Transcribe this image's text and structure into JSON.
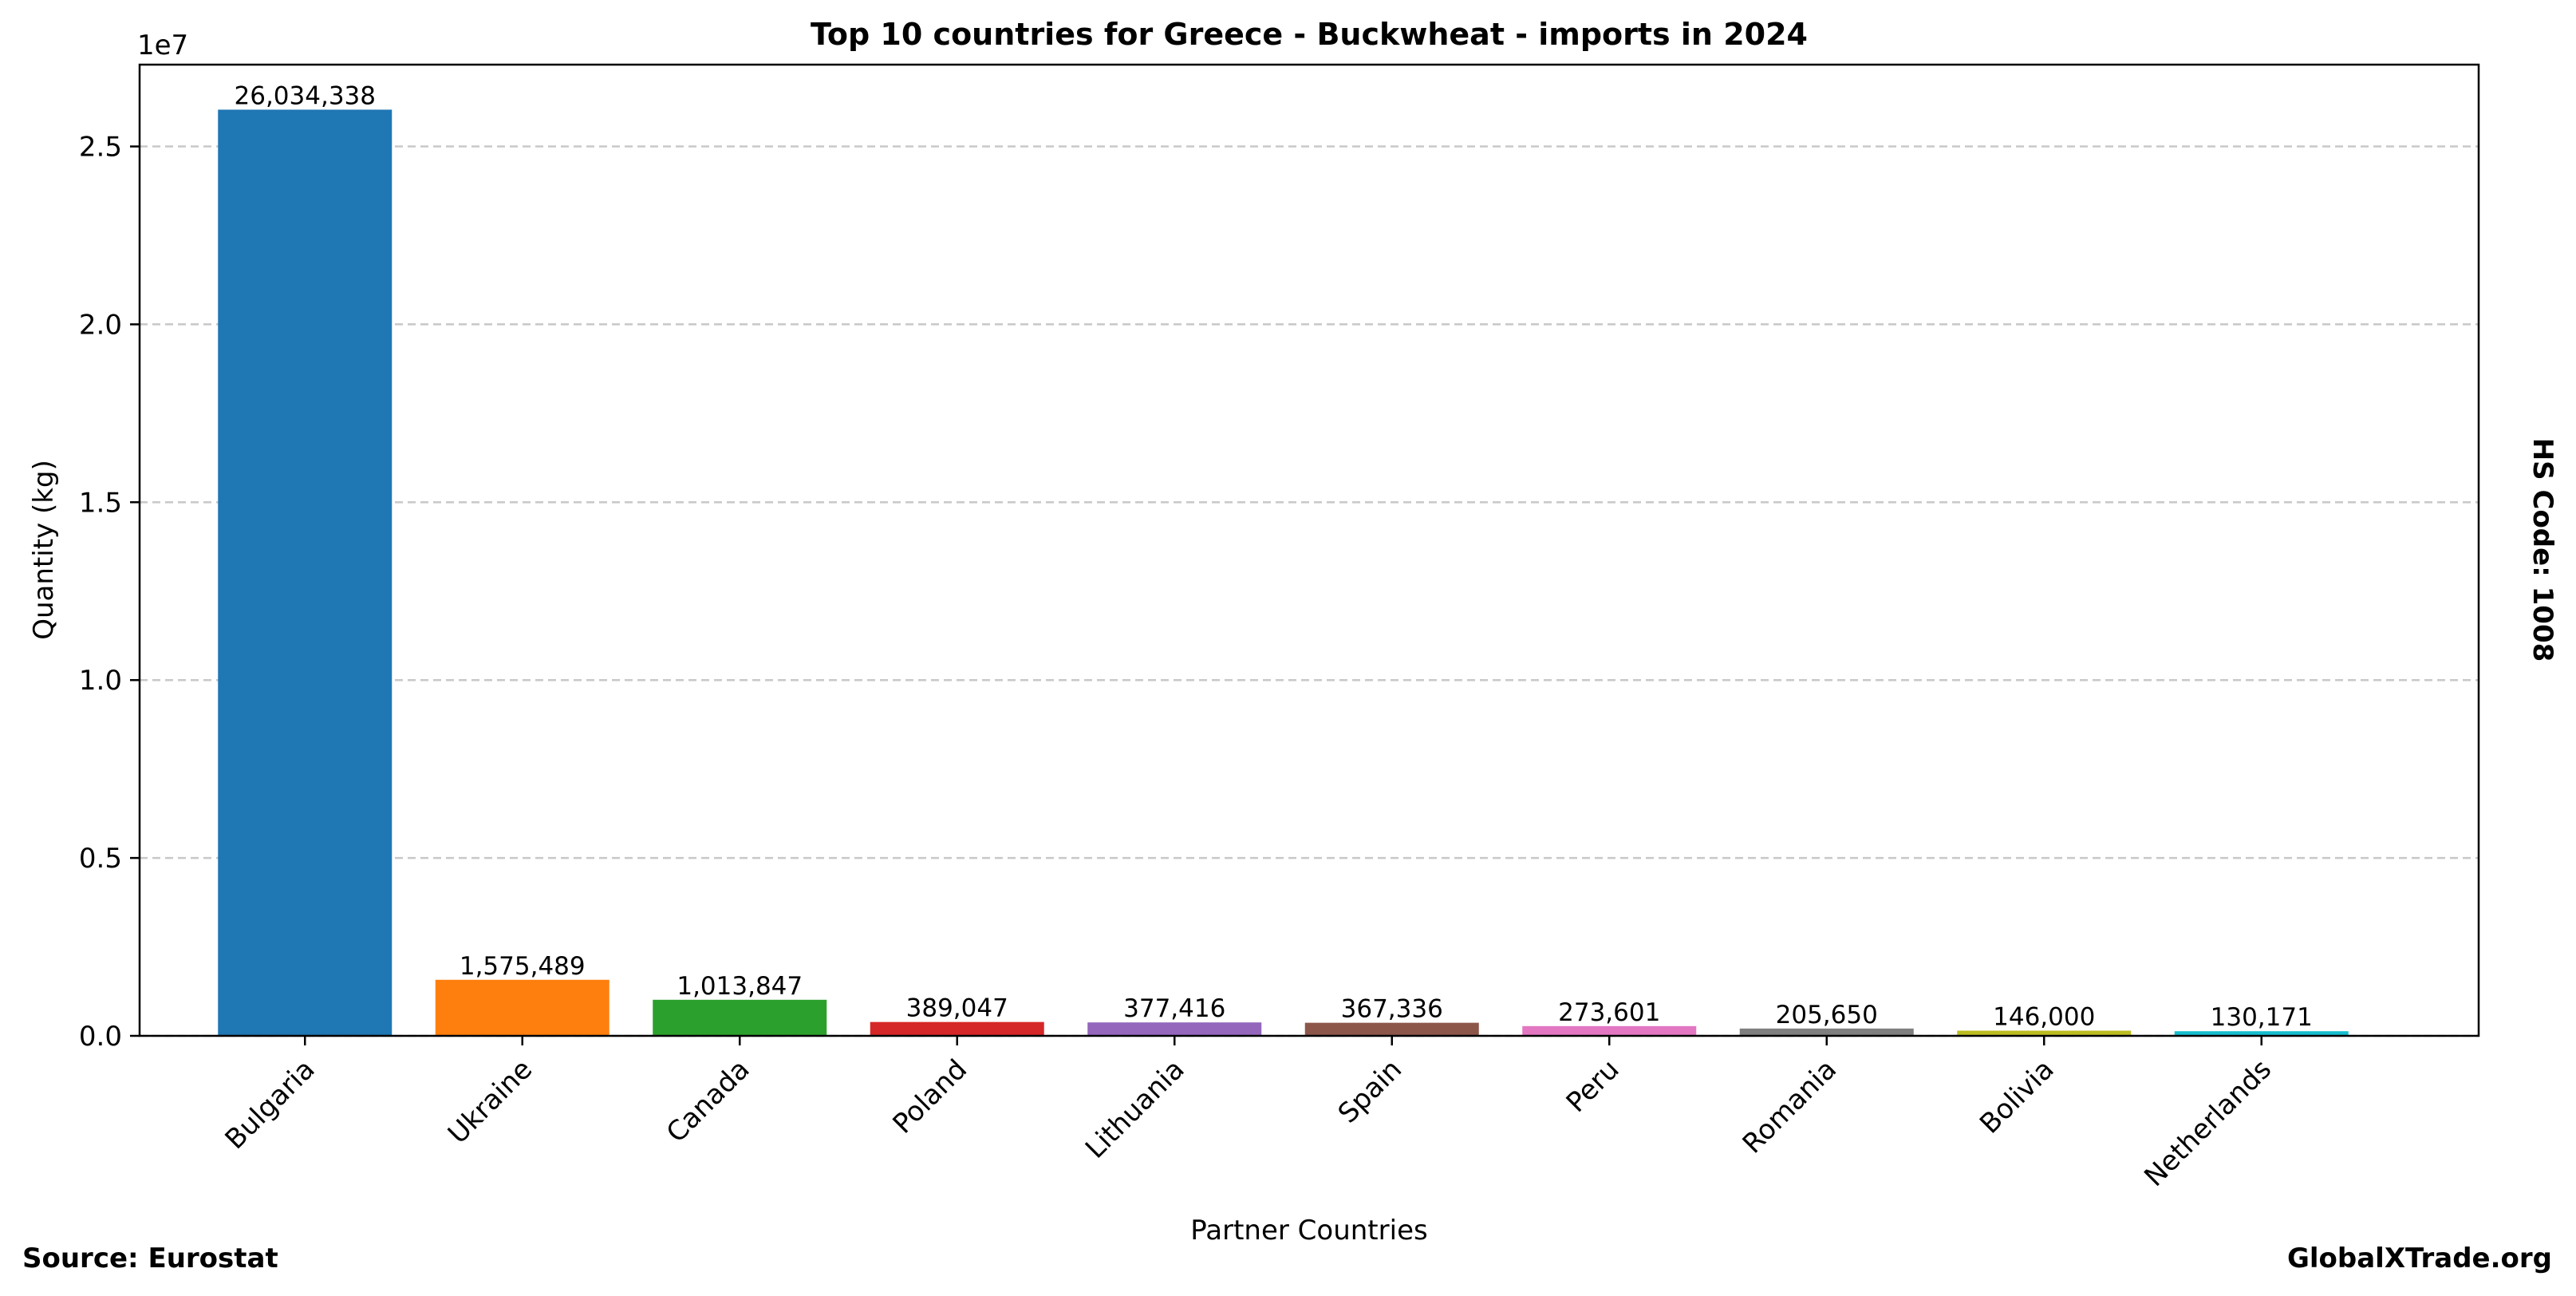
{
  "chart_data": {
    "type": "bar",
    "title": "Top 10 countries for Greece - Buckwheat - imports in 2024",
    "xlabel": "Partner Countries",
    "ylabel": "Quantity (kg)",
    "y_multiplier_label": "1e7",
    "ylim": [
      0,
      27300000
    ],
    "yticks": [
      0,
      5000000,
      10000000,
      15000000,
      20000000,
      25000000
    ],
    "ytick_labels": [
      "0.0",
      "0.5",
      "1.0",
      "1.5",
      "2.0",
      "2.5"
    ],
    "grid": "horizontal dashed",
    "categories": [
      "Bulgaria",
      "Ukraine",
      "Canada",
      "Poland",
      "Lithuania",
      "Spain",
      "Peru",
      "Romania",
      "Bolivia",
      "Netherlands"
    ],
    "values": [
      26034338,
      1575489,
      1013847,
      389047,
      377416,
      367336,
      273601,
      205650,
      146000,
      130171
    ],
    "value_labels": [
      "26,034,338",
      "1,575,489",
      "1,013,847",
      "389,047",
      "377,416",
      "367,336",
      "273,601",
      "205,650",
      "146,000",
      "130,171"
    ],
    "colors": [
      "#1f77b4",
      "#ff7f0e",
      "#2ca02c",
      "#d62728",
      "#9467bd",
      "#8c564b",
      "#e377c2",
      "#7f7f7f",
      "#bcbd22",
      "#17becf"
    ]
  },
  "side_label": "HS Code: 1008",
  "footer": {
    "source": "Source: Eurostat",
    "brand": "GlobalXTrade.org"
  }
}
